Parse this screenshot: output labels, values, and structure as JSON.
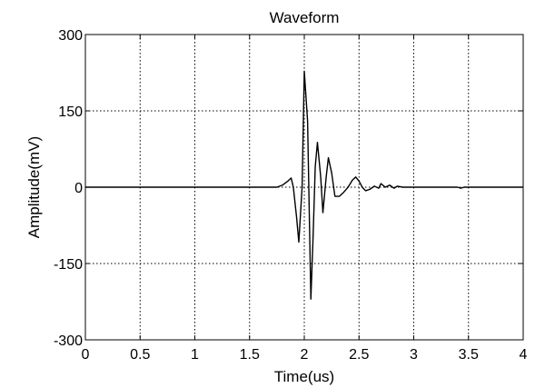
{
  "chart_data": {
    "type": "line",
    "title": "Waveform",
    "xlabel": "Time(us)",
    "ylabel": "Amplitude(mV)",
    "xlim": [
      0,
      4
    ],
    "ylim": [
      -300,
      300
    ],
    "grid": true,
    "x_ticks": [
      0,
      0.5,
      1,
      1.5,
      2,
      2.5,
      3,
      3.5,
      4
    ],
    "x_tick_labels": [
      "0",
      "0.5",
      "1",
      "1.5",
      "2",
      "2.5",
      "3",
      "3.5",
      "4"
    ],
    "y_ticks": [
      -300,
      -150,
      0,
      150,
      300
    ],
    "y_tick_labels": [
      "-300",
      "-150",
      "0",
      "150",
      "300"
    ],
    "series": [
      {
        "name": "Waveform",
        "color": "#000000",
        "x": [
          0,
          1.75,
          1.8,
          1.85,
          1.88,
          1.9,
          1.93,
          1.95,
          1.98,
          2.0,
          2.03,
          2.06,
          2.08,
          2.1,
          2.12,
          2.15,
          2.17,
          2.2,
          2.22,
          2.25,
          2.28,
          2.32,
          2.36,
          2.4,
          2.44,
          2.47,
          2.5,
          2.53,
          2.56,
          2.6,
          2.64,
          2.68,
          2.7,
          2.74,
          2.78,
          2.82,
          2.85,
          2.9,
          3.4,
          3.43,
          3.46,
          3.5,
          4.0
        ],
        "y": [
          0,
          0,
          4,
          12,
          18,
          0,
          -60,
          -108,
          0,
          228,
          130,
          -220,
          -100,
          40,
          88,
          20,
          -50,
          20,
          58,
          28,
          -18,
          -18,
          -10,
          0,
          14,
          20,
          12,
          0,
          -7,
          -4,
          2,
          -2,
          7,
          0,
          4,
          -2,
          2,
          0,
          0,
          -2,
          0,
          0,
          0
        ]
      }
    ]
  }
}
